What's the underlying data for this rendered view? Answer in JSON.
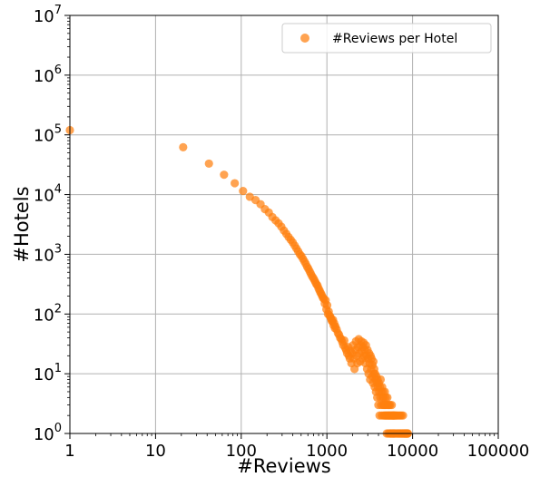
{
  "chart_data": {
    "type": "scatter",
    "title": "",
    "xlabel": "#Reviews",
    "ylabel": "#Hotels",
    "x_scale": "log",
    "y_scale": "log",
    "xlim": [
      1,
      100000
    ],
    "ylim": [
      1,
      10000000
    ],
    "grid": true,
    "legend_position": "top-right",
    "x_tick_labels": [
      "1",
      "10",
      "100",
      "1000",
      "10000",
      "100000"
    ],
    "y_tick_labels": [
      {
        "base": "10",
        "exp": "0"
      },
      {
        "base": "10",
        "exp": "1"
      },
      {
        "base": "10",
        "exp": "2"
      },
      {
        "base": "10",
        "exp": "3"
      },
      {
        "base": "10",
        "exp": "4"
      },
      {
        "base": "10",
        "exp": "5"
      },
      {
        "base": "10",
        "exp": "6"
      },
      {
        "base": "10",
        "exp": "7"
      }
    ],
    "series": [
      {
        "name": "#Reviews per Hotel",
        "color": "#ff7f0e",
        "opacity": 0.72,
        "points": [
          [
            1,
            120000
          ],
          [
            21,
            62000
          ],
          [
            42,
            33000
          ],
          [
            63,
            21500
          ],
          [
            84,
            15500
          ],
          [
            105,
            11500
          ],
          [
            126,
            9200
          ],
          [
            147,
            8100
          ],
          [
            168,
            6900
          ],
          [
            189,
            5700
          ],
          [
            210,
            5000
          ],
          [
            231,
            4200
          ],
          [
            252,
            3700
          ],
          [
            273,
            3300
          ],
          [
            294,
            2900
          ],
          [
            315,
            2500
          ],
          [
            336,
            2200
          ],
          [
            357,
            1950
          ],
          [
            378,
            1750
          ],
          [
            399,
            1580
          ],
          [
            420,
            1400
          ],
          [
            441,
            1250
          ],
          [
            462,
            1120
          ],
          [
            483,
            1000
          ],
          [
            504,
            930
          ],
          [
            525,
            840
          ],
          [
            546,
            760
          ],
          [
            567,
            690
          ],
          [
            588,
            620
          ],
          [
            609,
            570
          ],
          [
            630,
            515
          ],
          [
            651,
            470
          ],
          [
            672,
            430
          ],
          [
            693,
            400
          ],
          [
            714,
            370
          ],
          [
            735,
            340
          ],
          [
            756,
            315
          ],
          [
            777,
            300
          ],
          [
            798,
            270
          ],
          [
            819,
            250
          ],
          [
            840,
            230
          ],
          [
            861,
            215
          ],
          [
            882,
            200
          ],
          [
            903,
            185
          ],
          [
            924,
            180
          ],
          [
            945,
            150
          ],
          [
            966,
            170
          ],
          [
            987,
            120
          ],
          [
            1008,
            140
          ],
          [
            1029,
            100
          ],
          [
            1050,
            110
          ],
          [
            1071,
            95
          ],
          [
            1092,
            90
          ],
          [
            1113,
            85
          ],
          [
            1134,
            78
          ],
          [
            1155,
            75
          ],
          [
            1176,
            80
          ],
          [
            1197,
            65
          ],
          [
            1218,
            70
          ],
          [
            1239,
            58
          ],
          [
            1260,
            62
          ],
          [
            1302,
            55
          ],
          [
            1344,
            48
          ],
          [
            1386,
            45
          ],
          [
            1428,
            40
          ],
          [
            1470,
            38
          ],
          [
            1512,
            34
          ],
          [
            1554,
            30
          ],
          [
            1596,
            36
          ],
          [
            1638,
            27
          ],
          [
            1680,
            25
          ],
          [
            1722,
            22
          ],
          [
            1764,
            28
          ],
          [
            1806,
            20
          ],
          [
            1848,
            18
          ],
          [
            1890,
            24
          ],
          [
            1932,
            15
          ],
          [
            1974,
            22
          ],
          [
            2016,
            30
          ],
          [
            2058,
            18
          ],
          [
            2100,
            12
          ],
          [
            2142,
            25
          ],
          [
            2184,
            35
          ],
          [
            2226,
            20
          ],
          [
            2268,
            15
          ],
          [
            2310,
            28
          ],
          [
            2352,
            38
          ],
          [
            2394,
            22
          ],
          [
            2436,
            16
          ],
          [
            2478,
            30
          ],
          [
            2520,
            35
          ],
          [
            2562,
            24
          ],
          [
            2604,
            18
          ],
          [
            2646,
            28
          ],
          [
            2688,
            33
          ],
          [
            2730,
            20
          ],
          [
            2772,
            25
          ],
          [
            2814,
            15
          ],
          [
            2856,
            30
          ],
          [
            2898,
            20
          ],
          [
            2940,
            12
          ],
          [
            2982,
            25
          ],
          [
            3024,
            18
          ],
          [
            3066,
            10
          ],
          [
            3108,
            22
          ],
          [
            3150,
            15
          ],
          [
            3192,
            8
          ],
          [
            3234,
            20
          ],
          [
            3276,
            12
          ],
          [
            3318,
            18
          ],
          [
            3360,
            9
          ],
          [
            3402,
            14
          ],
          [
            3444,
            7
          ],
          [
            3486,
            16
          ],
          [
            3528,
            10
          ],
          [
            3570,
            12
          ],
          [
            3612,
            6
          ],
          [
            3654,
            10
          ],
          [
            3696,
            8
          ],
          [
            3738,
            5
          ],
          [
            3780,
            9
          ],
          [
            3822,
            7
          ],
          [
            3864,
            4
          ],
          [
            3906,
            8
          ],
          [
            3948,
            6
          ],
          [
            3990,
            3
          ],
          [
            4032,
            7
          ],
          [
            4074,
            5
          ],
          [
            4116,
            2
          ],
          [
            4158,
            6
          ],
          [
            4200,
            4
          ],
          [
            4242,
            8
          ],
          [
            4284,
            3
          ],
          [
            4326,
            5
          ],
          [
            4368,
            2
          ],
          [
            4410,
            6
          ],
          [
            4452,
            4
          ],
          [
            4494,
            3
          ],
          [
            4536,
            5
          ],
          [
            4578,
            2
          ],
          [
            4620,
            4
          ],
          [
            4662,
            3
          ],
          [
            4704,
            2
          ],
          [
            4746,
            5
          ],
          [
            4788,
            3
          ],
          [
            4830,
            2
          ],
          [
            4872,
            4
          ],
          [
            4914,
            2
          ],
          [
            4956,
            3
          ],
          [
            4998,
            1
          ],
          [
            5040,
            2
          ],
          [
            5082,
            4
          ],
          [
            5124,
            2
          ],
          [
            5166,
            3
          ],
          [
            5208,
            1
          ],
          [
            5250,
            2
          ],
          [
            5292,
            3
          ],
          [
            5334,
            2
          ],
          [
            5376,
            1
          ],
          [
            5418,
            2
          ],
          [
            5460,
            3
          ],
          [
            5502,
            1
          ],
          [
            5544,
            2
          ],
          [
            5586,
            1
          ],
          [
            5628,
            2
          ],
          [
            5670,
            1
          ],
          [
            5712,
            3
          ],
          [
            5754,
            2
          ],
          [
            5796,
            1
          ],
          [
            5838,
            2
          ],
          [
            5880,
            1
          ],
          [
            5922,
            2
          ],
          [
            5964,
            1
          ],
          [
            6006,
            2
          ],
          [
            6048,
            1
          ],
          [
            6090,
            2
          ],
          [
            6132,
            1
          ],
          [
            6174,
            2
          ],
          [
            6216,
            1
          ],
          [
            6300,
            2
          ],
          [
            6384,
            1
          ],
          [
            6468,
            2
          ],
          [
            6552,
            1
          ],
          [
            6636,
            2
          ],
          [
            6720,
            1
          ],
          [
            6804,
            1
          ],
          [
            6888,
            2
          ],
          [
            6972,
            1
          ],
          [
            7056,
            1
          ],
          [
            7140,
            2
          ],
          [
            7224,
            1
          ],
          [
            7308,
            1
          ],
          [
            7392,
            2
          ],
          [
            7476,
            1
          ],
          [
            7560,
            1
          ],
          [
            7644,
            1
          ],
          [
            7728,
            2
          ],
          [
            7812,
            1
          ],
          [
            7896,
            1
          ],
          [
            7980,
            1
          ],
          [
            8064,
            1
          ],
          [
            8148,
            1
          ],
          [
            8232,
            1
          ],
          [
            8316,
            1
          ],
          [
            8400,
            1
          ],
          [
            8484,
            1
          ],
          [
            8568,
            1
          ],
          [
            8652,
            1
          ],
          [
            8736,
            1
          ],
          [
            8820,
            1
          ]
        ]
      }
    ]
  }
}
